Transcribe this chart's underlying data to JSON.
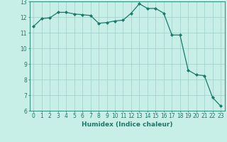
{
  "xlabel": "Humidex (Indice chaleur)",
  "x": [
    0,
    1,
    2,
    3,
    4,
    5,
    6,
    7,
    8,
    9,
    10,
    11,
    12,
    13,
    14,
    15,
    16,
    17,
    18,
    19,
    20,
    21,
    22,
    23
  ],
  "y": [
    11.4,
    11.9,
    11.95,
    12.3,
    12.3,
    12.2,
    12.15,
    12.1,
    11.6,
    11.65,
    11.75,
    11.8,
    12.25,
    12.85,
    12.55,
    12.55,
    12.25,
    10.85,
    10.85,
    8.6,
    8.3,
    8.25,
    6.85,
    6.3
  ],
  "line_color": "#1a7a6a",
  "marker": "D",
  "marker_size": 2.0,
  "line_width": 0.9,
  "bg_color": "#c8eee8",
  "grid_color": "#9ecec8",
  "ylim": [
    6,
    13
  ],
  "xlim": [
    -0.5,
    23.5
  ],
  "yticks": [
    6,
    7,
    8,
    9,
    10,
    11,
    12,
    13
  ],
  "xticks": [
    0,
    1,
    2,
    3,
    4,
    5,
    6,
    7,
    8,
    9,
    10,
    11,
    12,
    13,
    14,
    15,
    16,
    17,
    18,
    19,
    20,
    21,
    22,
    23
  ],
  "tick_label_color": "#1a7a6a",
  "tick_label_fontsize": 5.5,
  "xlabel_fontsize": 6.5,
  "xlabel_color": "#1a7a6a",
  "axis_color": "#1a7a6a"
}
